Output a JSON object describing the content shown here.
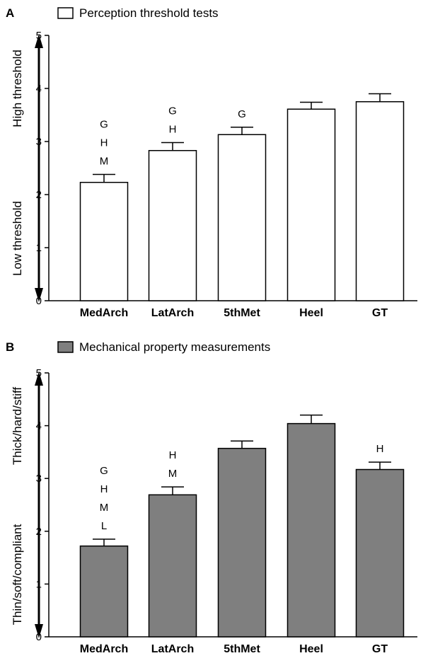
{
  "chart_data": [
    {
      "type": "bar",
      "panel": "A",
      "legend": {
        "label": "Perception threshold tests",
        "swatch_color": "#ffffff"
      },
      "categories": [
        "MedArch",
        "LatArch",
        "5thMet",
        "Heel",
        "GT"
      ],
      "values": [
        2.23,
        2.83,
        3.13,
        3.61,
        3.75
      ],
      "errors": [
        0.15,
        0.15,
        0.14,
        0.13,
        0.15
      ],
      "annotations": [
        [
          "G",
          "H",
          "M"
        ],
        [
          "G",
          "H"
        ],
        [
          "G"
        ],
        [],
        []
      ],
      "ylim": [
        0,
        5
      ],
      "yticks": [
        0,
        1,
        2,
        3,
        4,
        5
      ],
      "ylabel_high": "High threshold",
      "ylabel_low": "Low threshold",
      "bar_color": "#ffffff",
      "grid": false
    },
    {
      "type": "bar",
      "panel": "B",
      "legend": {
        "label": "Mechanical property measurements",
        "swatch_color": "#7f7f7f"
      },
      "categories": [
        "MedArch",
        "LatArch",
        "5thMet",
        "Heel",
        "GT"
      ],
      "values": [
        1.72,
        2.69,
        3.57,
        4.04,
        3.17
      ],
      "errors": [
        0.13,
        0.15,
        0.14,
        0.16,
        0.14
      ],
      "annotations": [
        [
          "G",
          "H",
          "M",
          "L"
        ],
        [
          "H",
          "M"
        ],
        [],
        [],
        [
          "H"
        ]
      ],
      "ylim": [
        0,
        5
      ],
      "yticks": [
        0,
        1,
        2,
        3,
        4,
        5
      ],
      "ylabel_high": "Thick/hard/stiff",
      "ylabel_low": "Thin/soft/compliant",
      "bar_color": "#7f7f7f",
      "grid": false
    }
  ]
}
